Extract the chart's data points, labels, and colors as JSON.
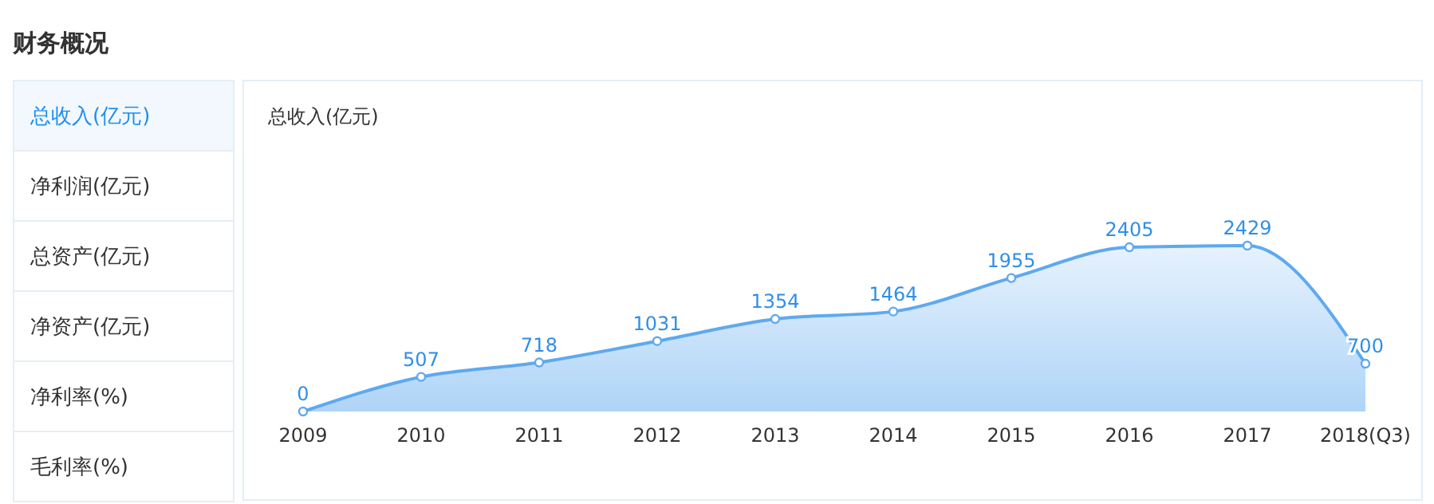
{
  "chart_data": {
    "type": "area",
    "title": "财务概况",
    "annotations": [
      "总收入(亿元)",
      "总收入(亿元)",
      "净利润(亿元)",
      "总资产(亿元)",
      "净资产(亿元)",
      "净利率(%)",
      "毛利率(%)"
    ],
    "categories": [
      "2009",
      "2010",
      "2011",
      "2012",
      "2013",
      "2014",
      "2015",
      "2016",
      "2017",
      "2018(Q3)"
    ],
    "series": [
      {
        "color": "#5ea9f0",
        "values": [
          0,
          507,
          718,
          1031,
          1354,
          1464,
          1955,
          2405,
          2429,
          700
        ]
      }
    ],
    "data_labels": true,
    "marker": "circle",
    "grid": false,
    "tick_labels": "x"
  }
}
